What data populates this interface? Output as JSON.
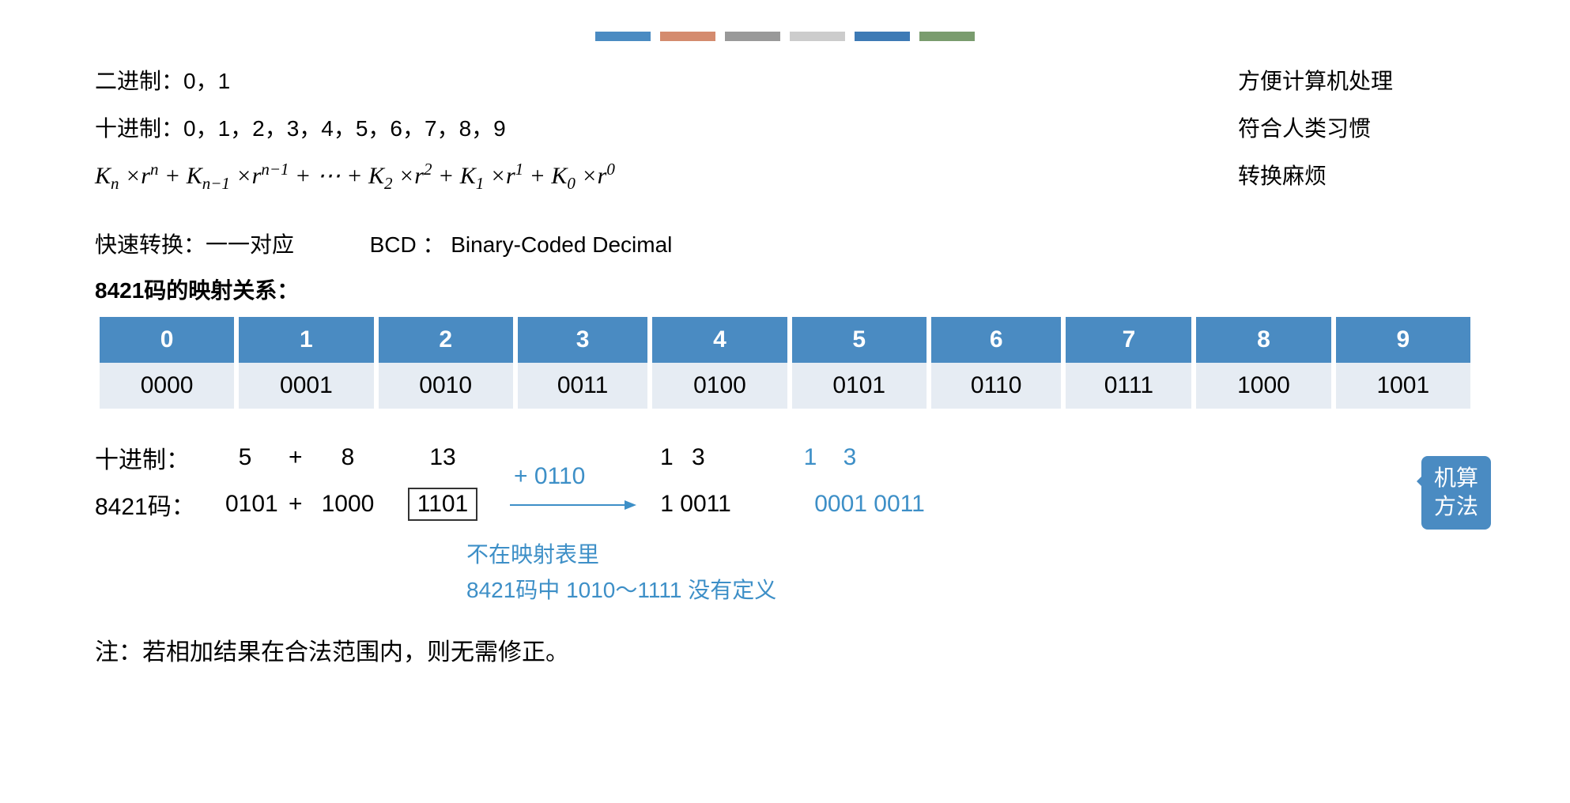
{
  "topBoxColors": [
    "#4a8bc2",
    "#d48b6e",
    "#999999",
    "#cccccc",
    "#3d7ab5",
    "#7a9c6e"
  ],
  "lines": {
    "binary": "二进制：0，1",
    "decimal": "十进制：0，1，2，3，4，5，6，7，8，9",
    "right1": "方便计算机处理",
    "right2": "符合人类习惯",
    "right3": "转换麻烦",
    "fastConv": "快速转换：一一对应",
    "bcdLabel": "BCD ： Binary-Coded Decimal",
    "mappingTitle": "8421码的映射关系："
  },
  "formula": {
    "terms": [
      {
        "k": "K",
        "ksub": "n",
        "r": "r",
        "rsup": "n"
      },
      {
        "k": "K",
        "ksub": "n−1",
        "r": "r",
        "rsup": "n−1"
      }
    ],
    "dots": "⋯",
    "rightTerms": [
      {
        "k": "K",
        "ksub": "2",
        "r": "r",
        "rsup": "2"
      },
      {
        "k": "K",
        "ksub": "1",
        "r": "r",
        "rsup": "1"
      },
      {
        "k": "K",
        "ksub": "0",
        "r": "r",
        "rsup": "0"
      }
    ]
  },
  "table": {
    "headers": [
      "0",
      "1",
      "2",
      "3",
      "4",
      "5",
      "6",
      "7",
      "8",
      "9"
    ],
    "row": [
      "0000",
      "0001",
      "0010",
      "0011",
      "0100",
      "0101",
      "0110",
      "0111",
      "1000",
      "1001"
    ],
    "headerBg": "#4a8bc2",
    "headerColor": "#ffffff",
    "cellBg": "#e6ecf3"
  },
  "calc": {
    "decLabel": "十进制：",
    "codeLabel": "8421码：",
    "dec": {
      "a": "5",
      "op": "+",
      "b": "8",
      "res": "13",
      "split1": "1",
      "split2": "3",
      "blue1": "1",
      "blue2": "3"
    },
    "code": {
      "a": "0101",
      "op": "+",
      "b": "1000",
      "res": "1101",
      "add": "+ 0110",
      "final": "1 0011",
      "blueFinal": "0001  0011"
    }
  },
  "annotation": {
    "line1": "不在映射表里",
    "line2": "8421码中 1010～1111 没有定义"
  },
  "callout": {
    "line1": "机算",
    "line2": "方法"
  },
  "note": "注：若相加结果在合法范围内，则无需修正。",
  "colors": {
    "blue": "#3d8fc7",
    "calloutBg": "#4a8bc2"
  }
}
